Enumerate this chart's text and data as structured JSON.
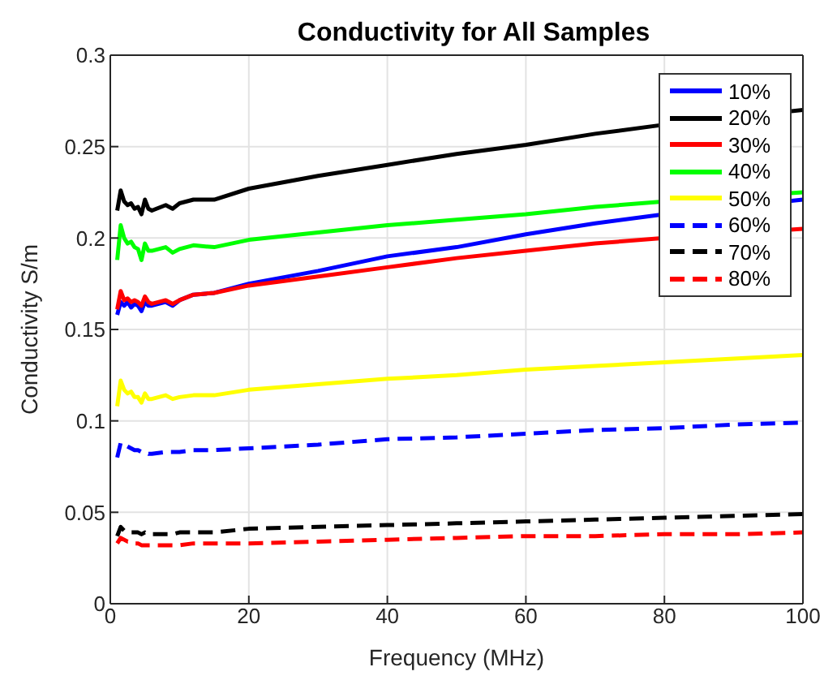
{
  "chart_data": {
    "type": "line",
    "title": "Conductivity for All Samples",
    "xlabel": "Frequency (MHz)",
    "ylabel": "Conductivity S/m",
    "x": [
      1,
      1.5,
      2,
      2.5,
      3,
      3.5,
      4,
      4.5,
      5,
      5.5,
      6,
      8,
      9,
      10,
      12,
      15,
      20,
      30,
      40,
      50,
      60,
      70,
      80,
      90,
      100
    ],
    "xlim": [
      0,
      100
    ],
    "xticks": [
      0,
      20,
      40,
      60,
      80,
      100
    ],
    "ylim": [
      0,
      0.3
    ],
    "yticks": [
      0,
      0.05,
      0.1,
      0.15,
      0.2,
      0.25,
      0.3
    ],
    "grid": true,
    "legend": "top right",
    "marker": "none",
    "series": [
      {
        "name": "10%",
        "color": "#0000ff",
        "line_style": "solid",
        "values": [
          0.158,
          0.165,
          0.163,
          0.165,
          0.162,
          0.164,
          0.163,
          0.16,
          0.165,
          0.163,
          0.163,
          0.165,
          0.163,
          0.166,
          0.169,
          0.17,
          0.175,
          0.182,
          0.19,
          0.195,
          0.202,
          0.208,
          0.213,
          null,
          0.221
        ]
      },
      {
        "name": "20%",
        "color": "#000000",
        "line_style": "solid",
        "values": [
          0.215,
          0.226,
          0.22,
          0.218,
          0.219,
          0.216,
          0.217,
          0.213,
          0.221,
          0.216,
          0.215,
          0.218,
          0.216,
          0.219,
          0.221,
          0.221,
          0.227,
          0.234,
          0.24,
          0.246,
          0.251,
          0.257,
          0.262,
          null,
          0.27
        ]
      },
      {
        "name": "30%",
        "color": "#ff0000",
        "line_style": "solid",
        "values": [
          0.161,
          0.171,
          0.166,
          0.167,
          0.165,
          0.166,
          0.165,
          0.163,
          0.168,
          0.165,
          0.164,
          0.166,
          0.164,
          0.166,
          0.169,
          0.17,
          0.174,
          0.179,
          0.184,
          0.189,
          0.193,
          0.197,
          0.2,
          null,
          0.205
        ]
      },
      {
        "name": "40%",
        "color": "#00ff00",
        "line_style": "solid",
        "values": [
          0.188,
          0.207,
          0.2,
          0.197,
          0.198,
          0.195,
          0.194,
          0.188,
          0.197,
          0.193,
          0.193,
          0.195,
          0.192,
          0.194,
          0.196,
          0.195,
          0.199,
          0.203,
          0.207,
          0.21,
          0.213,
          0.217,
          0.22,
          null,
          0.225
        ]
      },
      {
        "name": "50%",
        "color": "#ffff00",
        "line_style": "solid",
        "values": [
          0.108,
          0.122,
          0.117,
          0.115,
          0.116,
          0.113,
          0.113,
          0.11,
          0.115,
          0.112,
          0.112,
          0.114,
          0.112,
          0.113,
          0.114,
          0.114,
          0.117,
          0.12,
          0.123,
          0.125,
          0.128,
          0.13,
          0.132,
          0.134,
          0.136
        ]
      },
      {
        "name": "60%",
        "color": "#0000ff",
        "line_style": "dashed",
        "values": [
          0.08,
          0.088,
          0.087,
          0.086,
          0.085,
          0.084,
          0.084,
          0.083,
          0.083,
          0.082,
          0.082,
          0.083,
          0.083,
          0.083,
          0.084,
          0.084,
          0.085,
          0.087,
          0.09,
          0.091,
          0.093,
          0.095,
          0.096,
          0.098,
          0.099
        ]
      },
      {
        "name": "70%",
        "color": "#000000",
        "line_style": "dashed",
        "values": [
          0.037,
          0.042,
          0.04,
          0.039,
          0.039,
          0.039,
          0.039,
          0.038,
          0.039,
          0.038,
          0.038,
          0.038,
          0.038,
          0.039,
          0.039,
          0.039,
          0.041,
          0.042,
          0.043,
          0.044,
          0.045,
          0.046,
          0.047,
          0.048,
          0.049
        ]
      },
      {
        "name": "80%",
        "color": "#ff0000",
        "line_style": "dashed",
        "values": [
          0.033,
          0.036,
          0.035,
          0.034,
          0.034,
          0.033,
          0.033,
          0.032,
          0.032,
          0.032,
          0.032,
          0.032,
          0.032,
          0.032,
          0.033,
          0.033,
          0.033,
          0.034,
          0.035,
          0.036,
          0.037,
          0.037,
          0.038,
          0.038,
          0.039
        ]
      }
    ]
  }
}
